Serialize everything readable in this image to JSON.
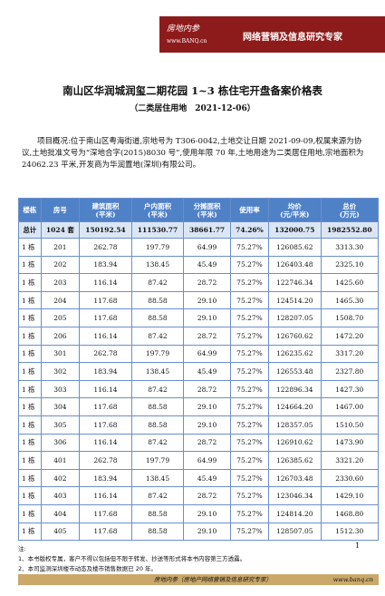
{
  "header": {
    "logo": "房地内参",
    "logo_url": "www.BANQ.cn",
    "slogan": "网络营销及信息研究专家"
  },
  "title": "南山区华润城润玺二期花园 1~3 栋住宅开盘备案价格表",
  "subtitle": "（二类居住用地　2021-12-06）",
  "overview": "项目概况:位于南山区粤海街道,宗地号为 T306-0042,土地交让日期 2021-09-09,权属来源为协议,土地批准文号为“深地合字(2015)8030 号”,使用年限 70 年,土地用途为二类居住用地,宗地面积为 24062.23 平米,开发商为华润置地(深圳)有限公司。",
  "table": {
    "columns": [
      "楼栋",
      "房号",
      "建筑面积\n(平米)",
      "户内面积\n(平米)",
      "分摊面积\n(平米)",
      "使用率",
      "均价\n(元/平米)",
      "总价\n(万元)"
    ],
    "total": [
      "总计",
      "1024 套",
      "150192.54",
      "111530.77",
      "38661.77",
      "74.26%",
      "132000.75",
      "1982552.80"
    ],
    "rows": [
      [
        "1 栋",
        "201",
        "262.78",
        "197.79",
        "64.99",
        "75.27%",
        "126085.62",
        "3313.30"
      ],
      [
        "1 栋",
        "202",
        "183.94",
        "138.45",
        "45.49",
        "75.27%",
        "126403.48",
        "2325.10"
      ],
      [
        "1 栋",
        "203",
        "116.14",
        "87.42",
        "28.72",
        "75.27%",
        "122746.34",
        "1425.60"
      ],
      [
        "1 栋",
        "204",
        "117.68",
        "88.58",
        "29.10",
        "75.27%",
        "124514.20",
        "1465.30"
      ],
      [
        "1 栋",
        "205",
        "117.68",
        "88.58",
        "29.10",
        "75.27%",
        "128207.05",
        "1508.70"
      ],
      [
        "1 栋",
        "206",
        "116.14",
        "87.42",
        "28.72",
        "75.27%",
        "126760.62",
        "1472.20"
      ],
      [
        "1 栋",
        "301",
        "262.78",
        "197.79",
        "64.99",
        "75.27%",
        "126235.62",
        "3317.20"
      ],
      [
        "1 栋",
        "302",
        "183.94",
        "138.45",
        "45.49",
        "75.27%",
        "126553.48",
        "2327.80"
      ],
      [
        "1 栋",
        "303",
        "116.14",
        "87.42",
        "28.72",
        "75.27%",
        "122896.34",
        "1427.30"
      ],
      [
        "1 栋",
        "304",
        "117.68",
        "88.58",
        "29.10",
        "75.27%",
        "124664.20",
        "1467.00"
      ],
      [
        "1 栋",
        "305",
        "117.68",
        "88.58",
        "29.10",
        "75.27%",
        "128357.05",
        "1510.50"
      ],
      [
        "1 栋",
        "306",
        "116.14",
        "87.42",
        "28.72",
        "75.27%",
        "126910.62",
        "1473.90"
      ],
      [
        "1 栋",
        "401",
        "262.78",
        "197.79",
        "64.99",
        "75.27%",
        "126385.62",
        "3321.20"
      ],
      [
        "1 栋",
        "402",
        "183.94",
        "138.45",
        "45.49",
        "75.27%",
        "126703.48",
        "2330.60"
      ],
      [
        "1 栋",
        "403",
        "116.14",
        "87.42",
        "28.72",
        "75.27%",
        "123046.34",
        "1429.10"
      ],
      [
        "1 栋",
        "404",
        "117.68",
        "88.58",
        "29.10",
        "75.27%",
        "124814.20",
        "1468.80"
      ],
      [
        "1 栋",
        "405",
        "117.68",
        "88.58",
        "29.10",
        "75.27%",
        "128507.05",
        "1512.30"
      ]
    ]
  },
  "notes": {
    "label": "注:",
    "items": [
      "1、本书版权专属，客户不得以包括但不限于转发、抄送等形式将本书内容第三方透露。",
      "2、本司监测深圳楼市动态及楼市销售数据已 20 年。"
    ]
  },
  "page_number": "1",
  "footer": {
    "text": "房地内参（房地产网络营销及信息研究专家）",
    "url": "www.banq.cn"
  }
}
